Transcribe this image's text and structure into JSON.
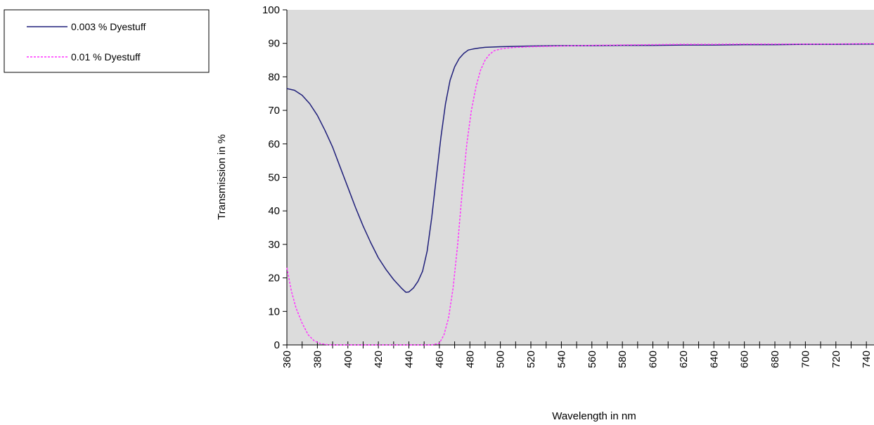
{
  "chart_data": {
    "type": "line",
    "xlabel": "Wavelength  in nm",
    "ylabel": "Transmission in %",
    "xlim": [
      360,
      745
    ],
    "ylim": [
      0,
      100
    ],
    "x_ticks": [
      360,
      380,
      400,
      420,
      440,
      460,
      480,
      500,
      520,
      540,
      560,
      580,
      600,
      620,
      640,
      660,
      680,
      700,
      720,
      740
    ],
    "x_minor_step": 10,
    "y_ticks": [
      0,
      10,
      20,
      30,
      40,
      50,
      60,
      70,
      80,
      90,
      100
    ],
    "grid": false,
    "legend_position": "top-left outside",
    "background_color": "#dcdcdc",
    "series": [
      {
        "name": "0.003 % Dyestuff",
        "color": "#1f1f7a",
        "style": "solid",
        "x": [
          360,
          365,
          370,
          375,
          380,
          385,
          390,
          395,
          400,
          405,
          410,
          415,
          420,
          425,
          430,
          435,
          438,
          440,
          443,
          446,
          449,
          452,
          455,
          458,
          461,
          464,
          467,
          470,
          473,
          476,
          479,
          482,
          486,
          490,
          500,
          510,
          520,
          540,
          560,
          580,
          600,
          620,
          640,
          660,
          680,
          700,
          720,
          740,
          745
        ],
        "y": [
          76.5,
          76,
          74.5,
          72,
          68.5,
          64,
          59,
          53,
          47,
          41,
          35.5,
          30.5,
          26,
          22.5,
          19.5,
          17,
          15.7,
          15.8,
          17,
          19,
          22,
          28,
          38,
          50,
          62,
          72,
          79,
          83,
          85.5,
          87,
          88,
          88.3,
          88.6,
          88.8,
          89,
          89.1,
          89.2,
          89.3,
          89.3,
          89.4,
          89.4,
          89.5,
          89.5,
          89.6,
          89.6,
          89.7,
          89.7,
          89.8,
          89.8
        ]
      },
      {
        "name": "0.01 % Dyestuff",
        "color": "#ff33ff",
        "style": "dashed",
        "x": [
          360,
          363,
          366,
          370,
          374,
          378,
          382,
          386,
          390,
          400,
          420,
          440,
          455,
          460,
          463,
          466,
          469,
          472,
          475,
          478,
          481,
          484,
          487,
          490,
          493,
          496,
          500,
          505,
          510,
          520,
          540,
          560,
          580,
          600,
          620,
          640,
          660,
          680,
          700,
          720,
          740,
          745
        ],
        "y": [
          23,
          16,
          11,
          6.5,
          3,
          1.2,
          0.4,
          0.1,
          0,
          0,
          0,
          0,
          0,
          0.5,
          3,
          8,
          17,
          30,
          46,
          60,
          70,
          77,
          82,
          85,
          86.8,
          87.8,
          88.3,
          88.6,
          88.8,
          89,
          89.2,
          89.4,
          89.5,
          89.6,
          89.7,
          89.7,
          89.8,
          89.8,
          89.8,
          89.8,
          89.9,
          89.9
        ]
      }
    ]
  }
}
